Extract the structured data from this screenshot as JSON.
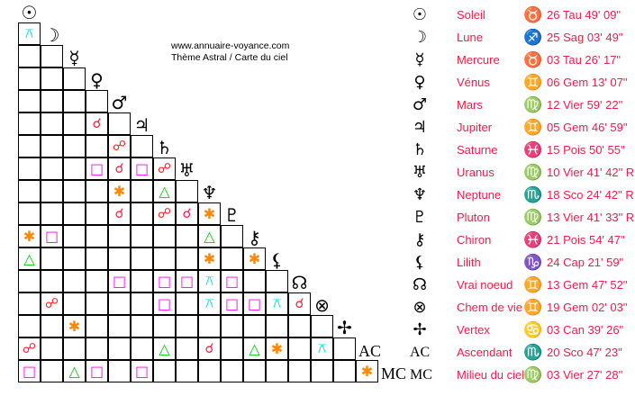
{
  "credits": {
    "site": "www.annuaire-voyance.com",
    "subtitle": "Thème Astral / Carte du ciel"
  },
  "aspect_colors": {
    "conjunction": "#ff2040",
    "opposition": "#ff2020",
    "square": "#ff00ff",
    "trine": "#00cc00",
    "sextile": "#ff8800",
    "quincunx": "#00e0e0"
  },
  "aspect_glyphs": {
    "conjunction": "☌",
    "opposition": "☍",
    "square": "□",
    "trine": "△",
    "sextile": "✱",
    "quincunx": "⚻"
  },
  "planets": [
    {
      "glyph": "☉",
      "name": "Soleil",
      "sign_glyph": "♉",
      "position": "26 Tau 49' 09\""
    },
    {
      "glyph": "☽",
      "name": "Lune",
      "sign_glyph": "♐",
      "position": "25 Sag 03' 49\""
    },
    {
      "glyph": "☿",
      "name": "Mercure",
      "sign_glyph": "♉",
      "position": "03 Tau 26' 17\""
    },
    {
      "glyph": "♀",
      "name": "Vénus",
      "sign_glyph": "♊",
      "position": "06 Gem 13' 07\""
    },
    {
      "glyph": "♂",
      "name": "Mars",
      "sign_glyph": "♍",
      "position": "12 Vier 59' 22\""
    },
    {
      "glyph": "♃",
      "name": "Jupiter",
      "sign_glyph": "♊",
      "position": "05 Gem 46' 59\""
    },
    {
      "glyph": "♄",
      "name": "Saturne",
      "sign_glyph": "♓",
      "position": "15 Pois 50' 55\""
    },
    {
      "glyph": "♅",
      "name": "Uranus",
      "sign_glyph": "♍",
      "position": "10 Vier 41' 42\" R"
    },
    {
      "glyph": "♆",
      "name": "Neptune",
      "sign_glyph": "♏",
      "position": "18 Sco 24' 42\" R"
    },
    {
      "glyph": "♇",
      "name": "Pluton",
      "sign_glyph": "♍",
      "position": "13 Vier 41' 33\" R"
    },
    {
      "glyph": "⚷",
      "name": "Chiron",
      "sign_glyph": "♓",
      "position": "21 Pois 54' 47\""
    },
    {
      "glyph": "⚸",
      "name": "Lilith",
      "sign_glyph": "♑",
      "position": "24 Cap 21' 59\""
    },
    {
      "glyph": "☊",
      "name": "Vrai noeud",
      "sign_glyph": "♊",
      "position": "13 Gem 47' 52\""
    },
    {
      "glyph": "⊗",
      "name": "Chem de vie",
      "sign_glyph": "♊",
      "position": "19 Gem 02' 03\""
    },
    {
      "glyph": "✢",
      "name": "Vertex",
      "sign_glyph": "♋",
      "position": "03 Can 39' 26\""
    },
    {
      "glyph": "AC",
      "name": "Ascendant",
      "sign_glyph": "♏",
      "position": "20 Sco 47' 23\""
    },
    {
      "glyph": "MC",
      "name": "Milieu du ciel",
      "sign_glyph": "♍",
      "position": "03 Vier 27' 28\""
    }
  ],
  "aspects": [
    {
      "row": 1,
      "col": 0,
      "type": "quincunx"
    },
    {
      "row": 5,
      "col": 3,
      "type": "conjunction"
    },
    {
      "row": 6,
      "col": 4,
      "type": "opposition"
    },
    {
      "row": 7,
      "col": 3,
      "type": "square"
    },
    {
      "row": 7,
      "col": 4,
      "type": "conjunction"
    },
    {
      "row": 7,
      "col": 5,
      "type": "square"
    },
    {
      "row": 7,
      "col": 6,
      "type": "opposition"
    },
    {
      "row": 8,
      "col": 4,
      "type": "sextile"
    },
    {
      "row": 8,
      "col": 6,
      "type": "trine"
    },
    {
      "row": 9,
      "col": 4,
      "type": "conjunction"
    },
    {
      "row": 9,
      "col": 6,
      "type": "opposition"
    },
    {
      "row": 9,
      "col": 7,
      "type": "conjunction"
    },
    {
      "row": 9,
      "col": 8,
      "type": "sextile"
    },
    {
      "row": 10,
      "col": 0,
      "type": "sextile"
    },
    {
      "row": 10,
      "col": 1,
      "type": "square"
    },
    {
      "row": 10,
      "col": 8,
      "type": "trine"
    },
    {
      "row": 11,
      "col": 0,
      "type": "trine"
    },
    {
      "row": 11,
      "col": 8,
      "type": "sextile"
    },
    {
      "row": 11,
      "col": 10,
      "type": "sextile"
    },
    {
      "row": 12,
      "col": 4,
      "type": "square"
    },
    {
      "row": 12,
      "col": 6,
      "type": "square"
    },
    {
      "row": 12,
      "col": 7,
      "type": "square"
    },
    {
      "row": 12,
      "col": 8,
      "type": "quincunx"
    },
    {
      "row": 12,
      "col": 9,
      "type": "square"
    },
    {
      "row": 13,
      "col": 1,
      "type": "opposition"
    },
    {
      "row": 13,
      "col": 6,
      "type": "square"
    },
    {
      "row": 13,
      "col": 8,
      "type": "quincunx"
    },
    {
      "row": 13,
      "col": 9,
      "type": "square"
    },
    {
      "row": 13,
      "col": 10,
      "type": "square"
    },
    {
      "row": 13,
      "col": 11,
      "type": "quincunx"
    },
    {
      "row": 13,
      "col": 12,
      "type": "conjunction"
    },
    {
      "row": 14,
      "col": 2,
      "type": "sextile"
    },
    {
      "row": 15,
      "col": 0,
      "type": "opposition"
    },
    {
      "row": 15,
      "col": 6,
      "type": "trine"
    },
    {
      "row": 15,
      "col": 8,
      "type": "conjunction"
    },
    {
      "row": 15,
      "col": 10,
      "type": "trine"
    },
    {
      "row": 15,
      "col": 11,
      "type": "sextile"
    },
    {
      "row": 15,
      "col": 13,
      "type": "quincunx"
    },
    {
      "row": 16,
      "col": 0,
      "type": "square"
    },
    {
      "row": 16,
      "col": 2,
      "type": "trine"
    },
    {
      "row": 16,
      "col": 3,
      "type": "square"
    },
    {
      "row": 16,
      "col": 5,
      "type": "square"
    },
    {
      "row": 16,
      "col": 15,
      "type": "sextile"
    }
  ]
}
